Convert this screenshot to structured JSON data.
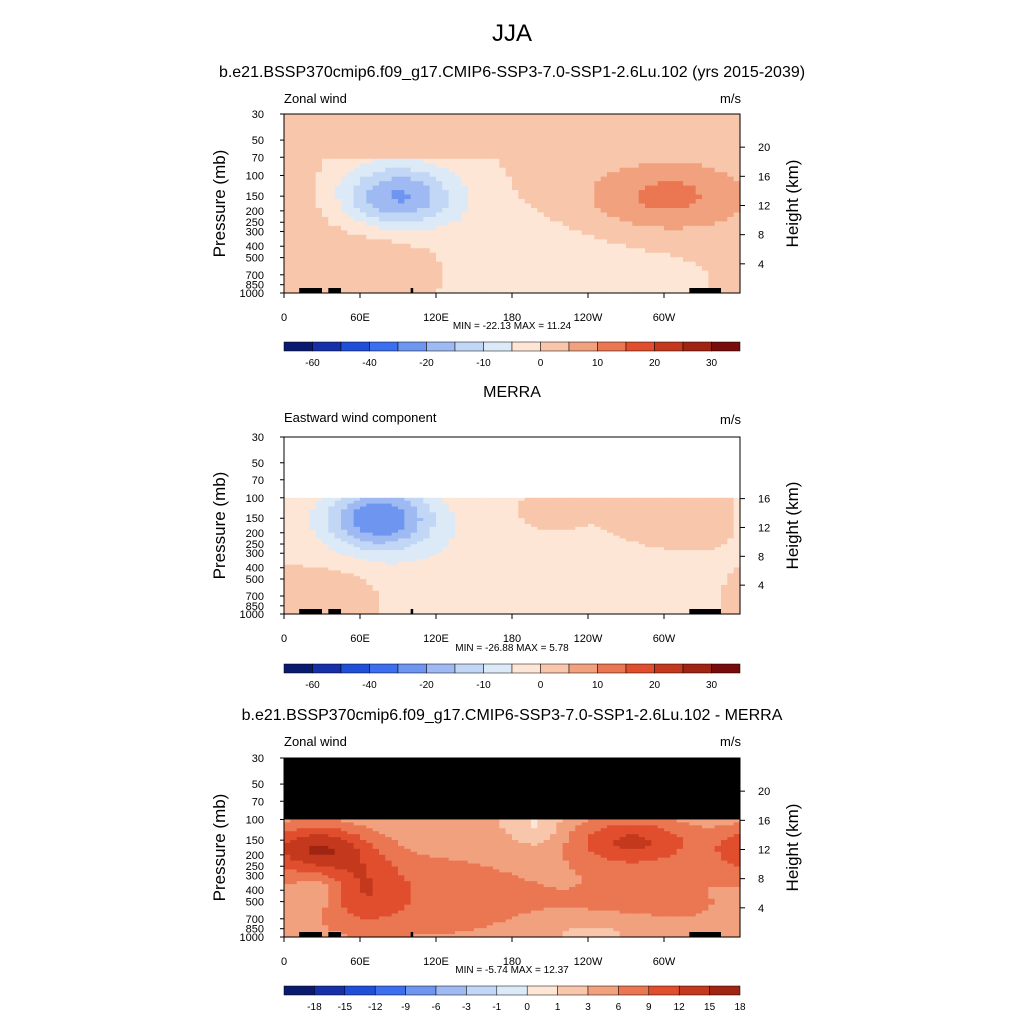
{
  "title": "JJA",
  "chart_data": [
    {
      "type": "heatmap",
      "title": "b.e21.BSSP370cmip6.f09_g17.CMIP6-SSP3-7.0-SSP1-2.6Lu.102 (yrs 2015-2039)",
      "left_label": "Zonal wind",
      "units": "m/s",
      "ylabel": "Pressure (mb)",
      "y2label": "Height (km)",
      "x_ticks": [
        "0",
        "60E",
        "120E",
        "180",
        "120W",
        "60W"
      ],
      "y_ticks": [
        "30",
        "50",
        "70",
        "100",
        "150",
        "200",
        "250",
        "300",
        "400",
        "500",
        "700",
        "850",
        "1000"
      ],
      "y2_ticks": [
        "20",
        "16",
        "12",
        "8",
        "4"
      ],
      "stats": "MIN = -22.13  MAX =  11.24",
      "colorbar_labels": [
        "-60",
        "-40",
        "-20",
        "-10",
        "0",
        "10",
        "20",
        "30"
      ],
      "colorbar_colors": [
        "#0a1a6e",
        "#1530a8",
        "#1f4fd8",
        "#3b6ff0",
        "#6e96f0",
        "#9fbaf2",
        "#c2d7f5",
        "#dceaf7",
        "#fde6d6",
        "#f8c6aa",
        "#f1a17e",
        "#eb7652",
        "#e14e2e",
        "#c4391d",
        "#a02412",
        "#780c0c"
      ],
      "min": -22.13,
      "max": 11.24,
      "features": [
        {
          "sign": "neg",
          "lon": 90,
          "p": 150,
          "peak": -22.13
        },
        {
          "sign": "pos",
          "lon": 300,
          "p": 150,
          "peak": 11.24
        }
      ]
    },
    {
      "type": "heatmap",
      "title": "MERRA",
      "left_label": "Eastward wind component",
      "units": "m/s",
      "ylabel": "Pressure (mb)",
      "y2label": "Height (km)",
      "x_ticks": [
        "0",
        "60E",
        "120E",
        "180",
        "120W",
        "60W"
      ],
      "y_ticks": [
        "30",
        "50",
        "70",
        "100",
        "150",
        "200",
        "250",
        "300",
        "400",
        "500",
        "700",
        "850",
        "1000"
      ],
      "y2_ticks": [
        "16",
        "12",
        "8",
        "4"
      ],
      "stats": "MIN = -26.88  MAX =   5.78",
      "colorbar_labels": [
        "-60",
        "-40",
        "-20",
        "-10",
        "0",
        "10",
        "20",
        "30"
      ],
      "min": -26.88,
      "max": 5.78,
      "features": [
        {
          "sign": "neg",
          "lon": 75,
          "p": 150,
          "peak": -26.88
        },
        {
          "sign": "pos",
          "lon": 300,
          "p": 150,
          "peak": 5.78
        }
      ]
    },
    {
      "type": "heatmap",
      "title": "b.e21.BSSP370cmip6.f09_g17.CMIP6-SSP3-7.0-SSP1-2.6Lu.102 - MERRA",
      "left_label": "Zonal wind",
      "units": "m/s",
      "ylabel": "Pressure (mb)",
      "y2label": "Height (km)",
      "x_ticks": [
        "0",
        "60E",
        "120E",
        "180",
        "120W",
        "60W"
      ],
      "y_ticks": [
        "30",
        "50",
        "70",
        "100",
        "150",
        "200",
        "250",
        "300",
        "400",
        "500",
        "700",
        "850",
        "1000"
      ],
      "y2_ticks": [
        "20",
        "16",
        "12",
        "8",
        "4"
      ],
      "stats": "MIN =  -5.74  MAX =  12.37",
      "colorbar_labels": [
        "-18",
        "-15",
        "-12",
        "-9",
        "-6",
        "-3",
        "-1",
        "0",
        "1",
        "3",
        "6",
        "9",
        "12",
        "15",
        "18"
      ],
      "min": -5.74,
      "max": 12.37,
      "features": [
        {
          "sign": "pos",
          "lon": 30,
          "p": 175,
          "peak": 12.37
        },
        {
          "sign": "pos",
          "lon": 270,
          "p": 150,
          "peak": 9.0
        }
      ]
    }
  ]
}
